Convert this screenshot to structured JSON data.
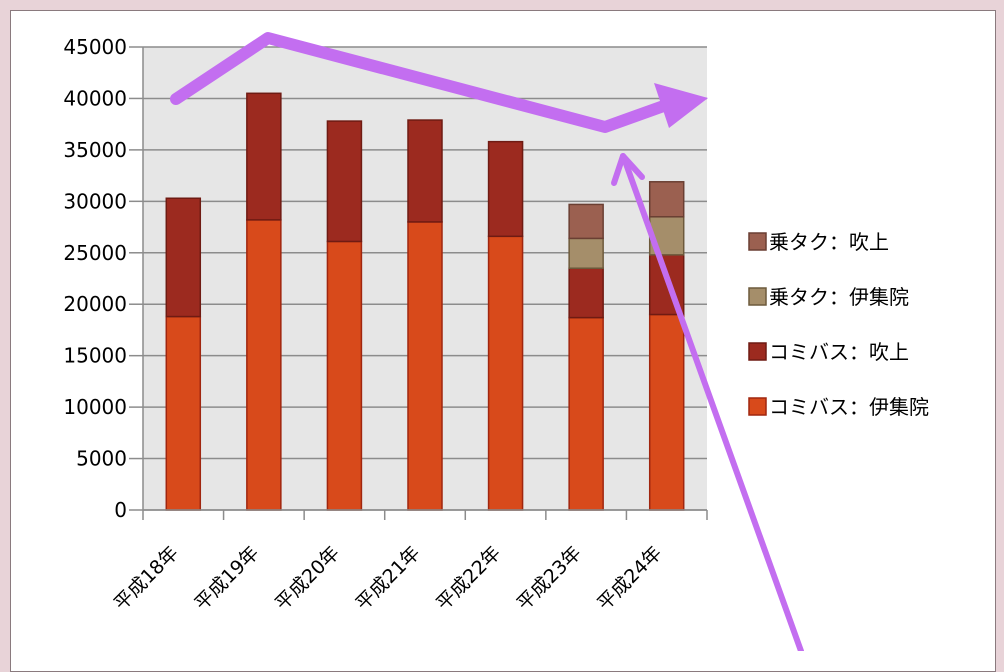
{
  "chart_data": {
    "type": "bar",
    "stacked": true,
    "categories": [
      "平成18年",
      "平成19年",
      "平成20年",
      "平成21年",
      "平成22年",
      "平成23年",
      "平成24年"
    ],
    "series": [
      {
        "name": "コミバス：伊集院",
        "color": "#d84a1b",
        "values": [
          18800,
          28200,
          26100,
          28000,
          26600,
          18700,
          19000
        ]
      },
      {
        "name": "コミバス：吹上",
        "color": "#9c2a1f",
        "values": [
          11500,
          12300,
          11700,
          9900,
          9200,
          4800,
          5800
        ]
      },
      {
        "name": "乗タク：伊集院",
        "color": "#a58e6a",
        "values": [
          0,
          0,
          0,
          0,
          0,
          2900,
          3700
        ]
      },
      {
        "name": "乗タク：吹上",
        "color": "#9b6050",
        "values": [
          0,
          0,
          0,
          0,
          0,
          3300,
          3400
        ]
      }
    ],
    "ylim": [
      0,
      45000
    ],
    "yticks": [
      "45000",
      "40000",
      "35000",
      "30000",
      "25000",
      "20000",
      "15000",
      "10000",
      "5000",
      "0"
    ],
    "legend_position": "right",
    "grid": true,
    "plot_background": "#e6e6e6",
    "annotation_color": "#c36ef0"
  }
}
